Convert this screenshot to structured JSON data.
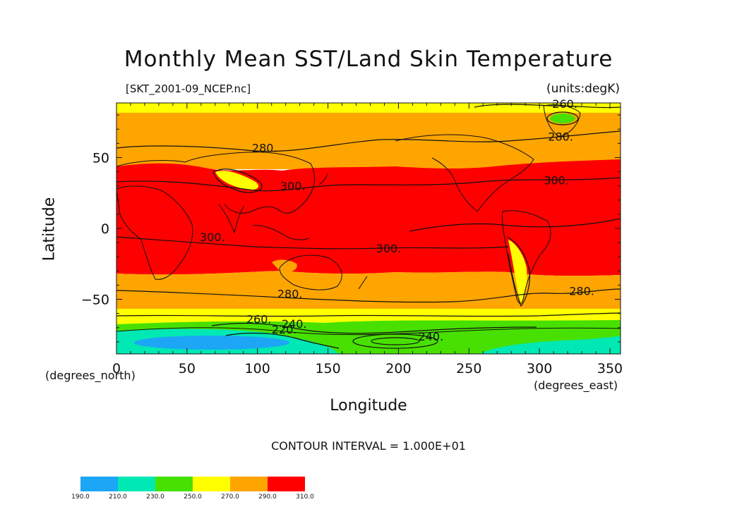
{
  "chart_data": {
    "type": "heatmap",
    "title": "Monthly Mean SST/Land Skin Temperature",
    "subtitle_left": "[SKT_2001-09_NCEP.nc]",
    "subtitle_right": "(units:degK)",
    "xlabel": "Longitude",
    "ylabel": "Latitude",
    "x_unit_note": "(degrees_east)",
    "y_unit_note": "(degrees_north)",
    "xlim": [
      0,
      357.5
    ],
    "ylim": [
      -88.5,
      88.5
    ],
    "x_ticks": [
      0,
      50,
      100,
      150,
      200,
      250,
      300,
      350
    ],
    "y_ticks": [
      -50,
      0,
      50
    ],
    "contour_interval_text": "CONTOUR INTERVAL = 1.000E+01",
    "contour_labels": [
      {
        "text": "260.",
        "lon": 318,
        "lat": 86
      },
      {
        "text": "280.",
        "lon": 315,
        "lat": 63
      },
      {
        "text": "280.",
        "lon": 105,
        "lat": 55
      },
      {
        "text": "300.",
        "lon": 125,
        "lat": 28
      },
      {
        "text": "300.",
        "lon": 312,
        "lat": 32
      },
      {
        "text": "300.",
        "lon": 68,
        "lat": -8
      },
      {
        "text": "300.",
        "lon": 193,
        "lat": -16
      },
      {
        "text": "280.",
        "lon": 123,
        "lat": -48
      },
      {
        "text": "280.",
        "lon": 330,
        "lat": -46
      },
      {
        "text": "260.",
        "lon": 101,
        "lat": -66
      },
      {
        "text": "240.",
        "lon": 126,
        "lat": -69
      },
      {
        "text": "220.",
        "lon": 119,
        "lat": -73
      },
      {
        "text": "240.",
        "lon": 223,
        "lat": -78
      }
    ],
    "colorbar": {
      "levels": [
        190.0,
        210.0,
        230.0,
        250.0,
        270.0,
        290.0,
        310.0
      ],
      "labels": [
        "190.0",
        "210.0",
        "230.0",
        "250.0",
        "270.0",
        "290.0",
        "310.0"
      ],
      "colors": [
        "#1ca6f5",
        "#00e8b4",
        "#48e000",
        "#ffff00",
        "#ffa500",
        "#ff0000"
      ]
    }
  }
}
